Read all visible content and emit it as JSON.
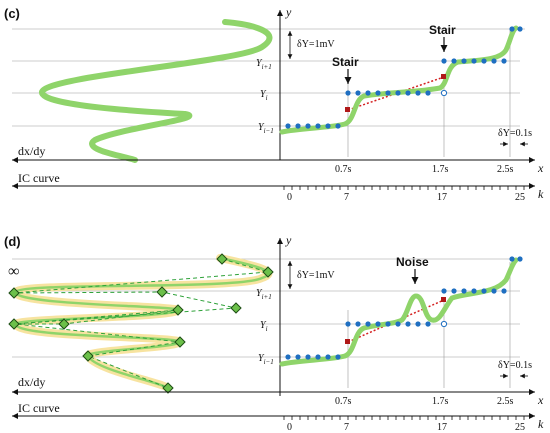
{
  "panels": [
    {
      "id": "c",
      "label": "(c)",
      "y_axis_label": "y",
      "x_axis_label": "x",
      "k_axis_label": "k",
      "delta_y_label": "δY=1mV",
      "delta_t_label": "δY=0.1s",
      "left_axis_label": "dx/dy",
      "ic_curve_label": "IC curve",
      "y_levels": [
        "Y_{i+1}",
        "Y_i",
        "Y_{i-1}"
      ],
      "x_ticks": [
        "0.7s",
        "1.7s",
        "2.5s"
      ],
      "k_ticks": [
        "0",
        "7",
        "17",
        "25"
      ],
      "annotations": [
        "Stair",
        "Stair"
      ]
    },
    {
      "id": "d",
      "label": "(d)",
      "y_axis_label": "y",
      "x_axis_label": "x",
      "k_axis_label": "k",
      "delta_y_label": "δY=1mV",
      "delta_t_label": "δY=0.1s",
      "left_axis_label": "dx/dy",
      "ic_curve_label": "IC curve",
      "infinity_label": "∞",
      "y_levels": [
        "Y_{i+1}",
        "Y_i",
        "Y_{i-1}"
      ],
      "x_ticks": [
        "0.7s",
        "1.7s",
        "2.5s"
      ],
      "k_ticks": [
        "0",
        "7",
        "17",
        "25"
      ],
      "annotations": [
        "Noise"
      ]
    }
  ],
  "colors": {
    "curve_green": "#8fd46a",
    "dot_blue": "#1f6fc1",
    "dot_red": "#b01818",
    "trend_red": "#d42020",
    "highlight_yellow": "#f7e3a0",
    "dashed_green": "#2fa23a",
    "diamond_fill": "#6cc04a",
    "grid_gray": "#9a9a9a"
  }
}
